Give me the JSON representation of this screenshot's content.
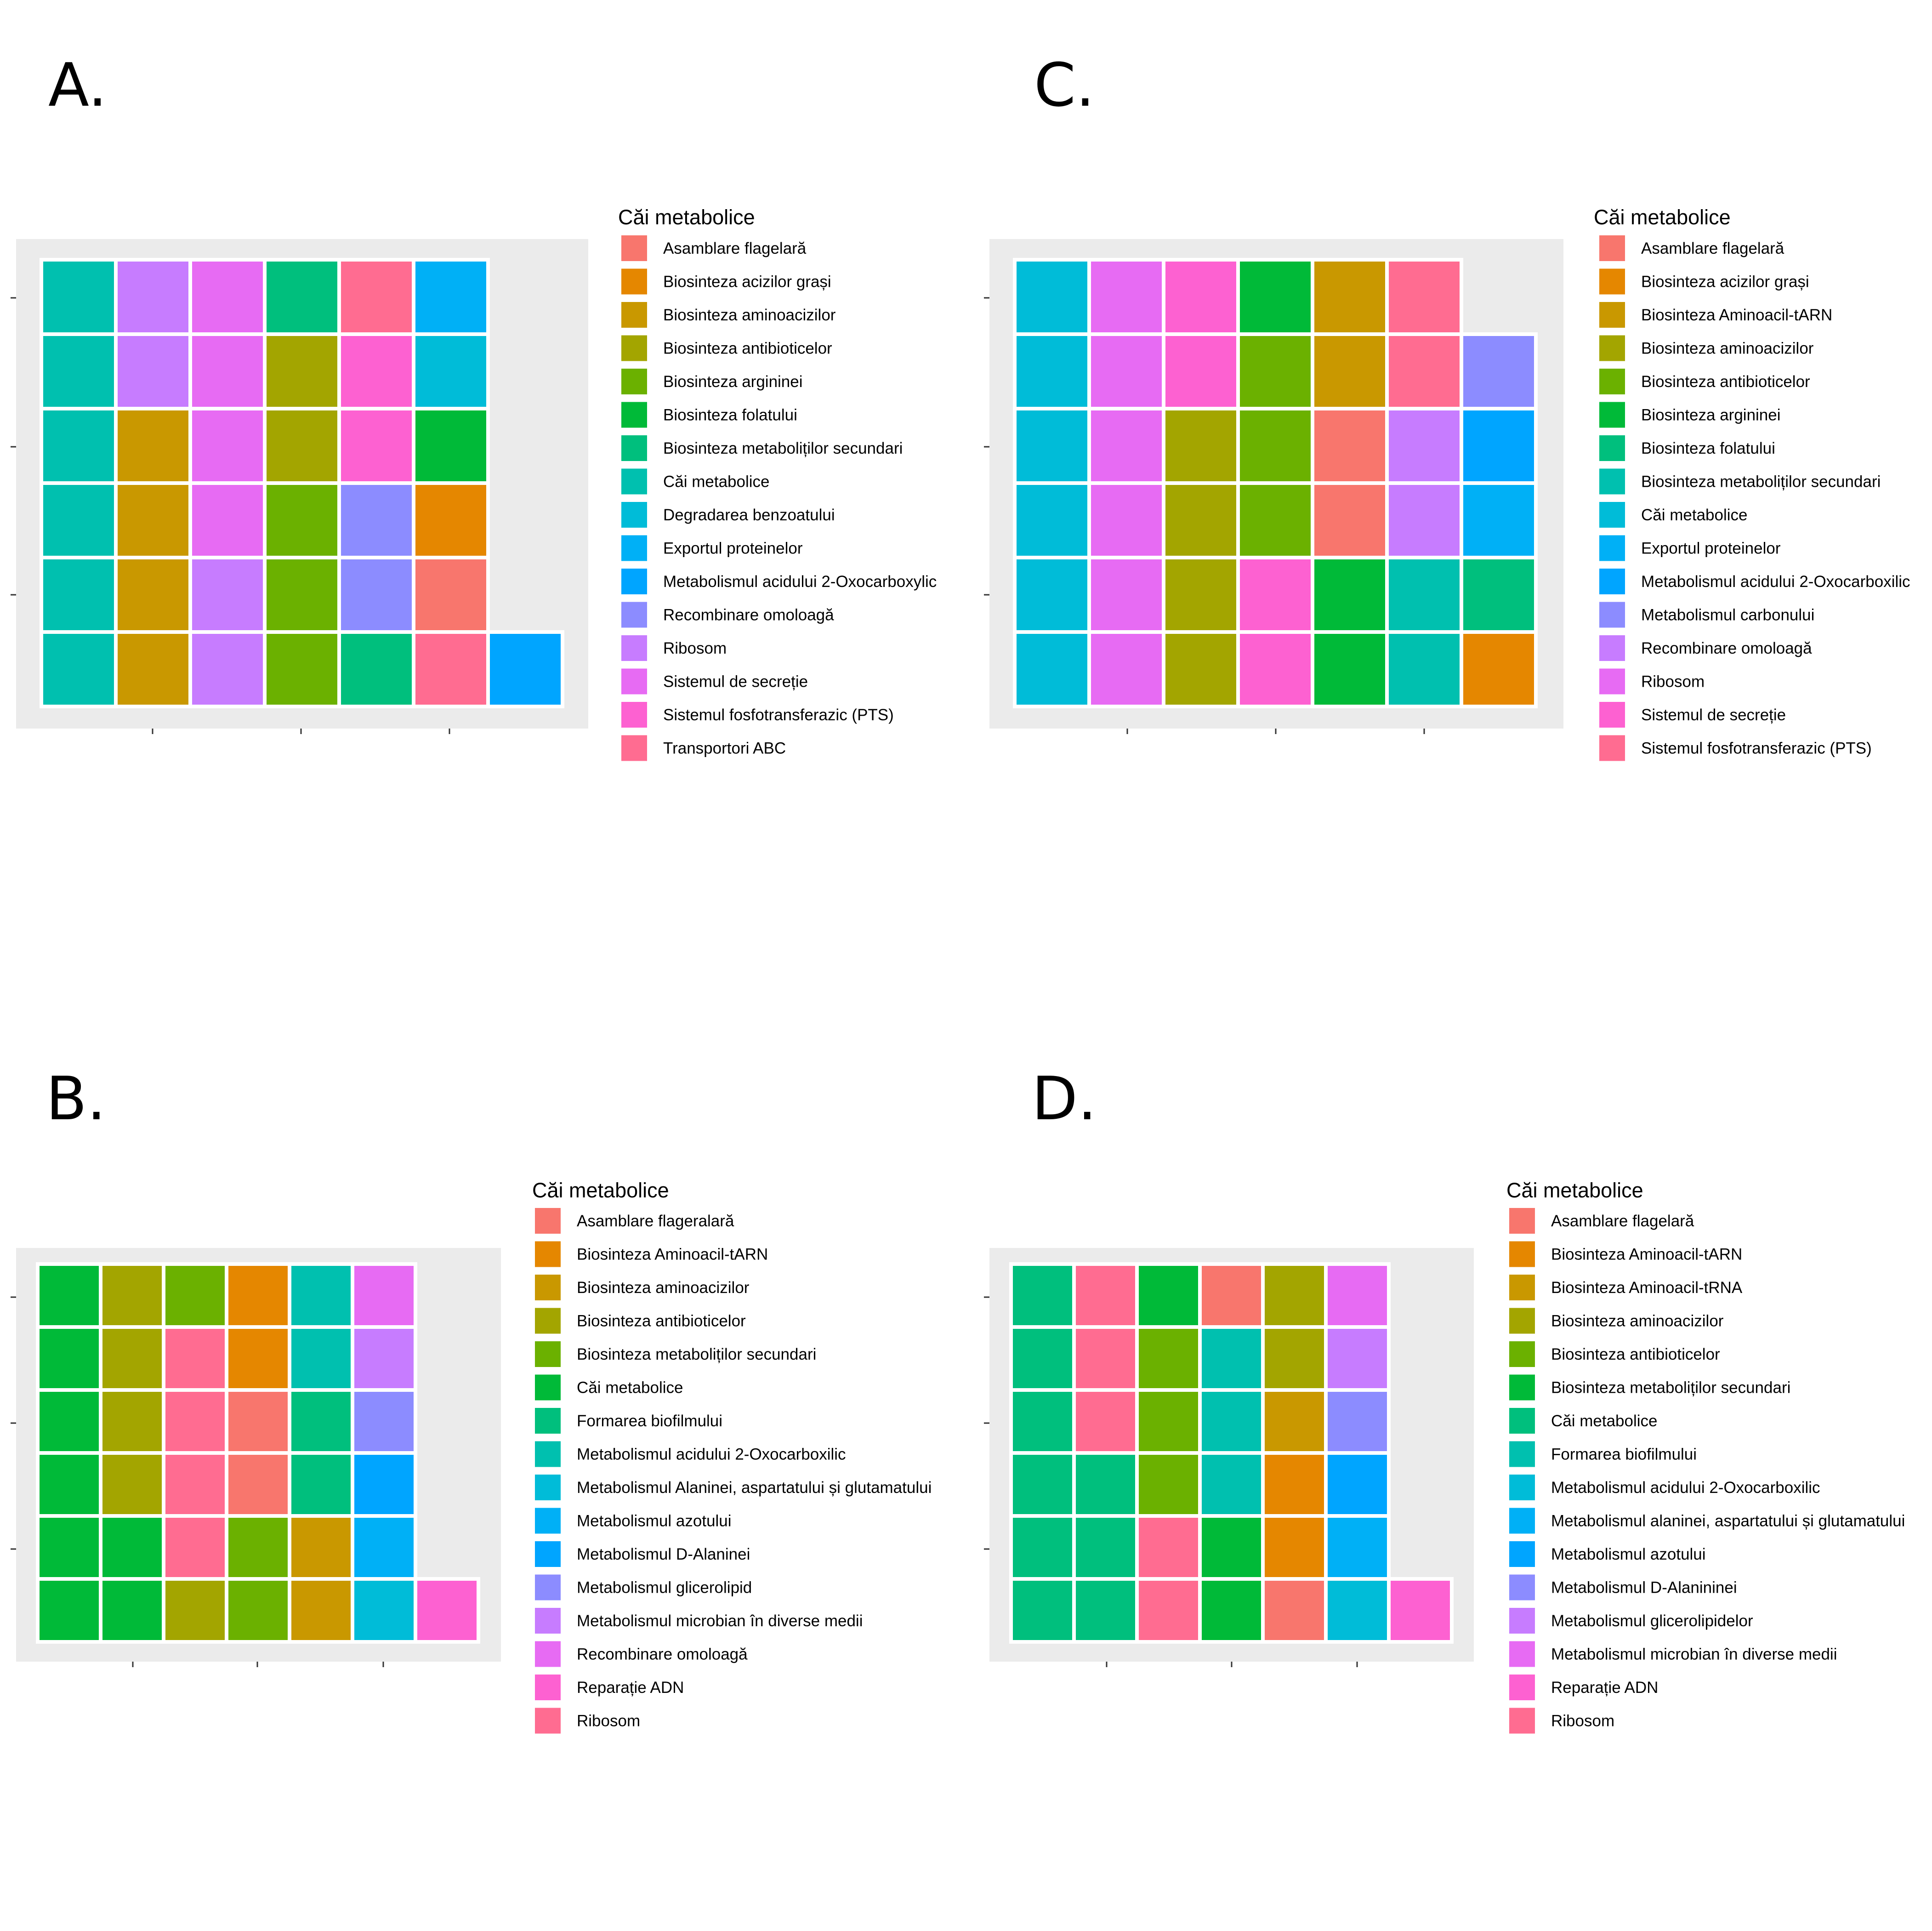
{
  "palette": {
    "Asamblare flagelară": "#F8766D",
    "Asamblare flageralară": "#F8766D",
    "Biosinteza acizilor grași": "#E58700",
    "Biosinteza Aminoacil-tARN": "#E58700",
    "Biosinteza Aminoacil-tRNA": "#C99800",
    "Biosinteza aminoacizilor": "#C99800",
    "Biosinteza antibioticelor": "#A3A500",
    "Biosinteza argininei": "#6BB100",
    "Biosinteza folatului": "#00BA38",
    "Biosinteza metaboliților secundari": "#00BF7D",
    "Căi metabolice": "#00C0AF",
    "Degradarea benzoatului": "#00BCD8",
    "Exportul proteinelor": "#00B0F6",
    "Metabolismul acidului 2-Oxocarboxylic": "#00A5FF",
    "Recombinare omoloagă": "#8C8CFF",
    "Ribosom": "#C77CFF",
    "Sistemul de secreție": "#E76BF3",
    "Sistemul fosfotransferazic (PTS)": "#FD61D1",
    "Transportori ABC": "#FF6C91"
  },
  "chart_data": [
    {
      "panel": "A.",
      "type": "waffle",
      "legend_title": "Căi metabolice",
      "legend_position": "right",
      "grid": "off",
      "legend": [
        {
          "label": "Asamblare flagelară",
          "color": "#F8766D"
        },
        {
          "label": "Biosinteza acizilor grași",
          "color": "#E58700"
        },
        {
          "label": "Biosinteza aminoacizilor",
          "color": "#C99800"
        },
        {
          "label": "Biosinteza antibioticelor",
          "color": "#A3A500"
        },
        {
          "label": "Biosinteza argininei",
          "color": "#6BB100"
        },
        {
          "label": "Biosinteza folatului",
          "color": "#00BA38"
        },
        {
          "label": "Biosinteza metaboliților secundari",
          "color": "#00BF7D"
        },
        {
          "label": "Căi metabolice",
          "color": "#00C0AF"
        },
        {
          "label": "Degradarea benzoatului",
          "color": "#00BCD8"
        },
        {
          "label": "Exportul proteinelor",
          "color": "#00B0F6"
        },
        {
          "label": "Metabolismul acidului 2-Oxocarboxylic",
          "color": "#00A5FF"
        },
        {
          "label": "Recombinare omoloagă",
          "color": "#8C8CFF"
        },
        {
          "label": "Ribosom",
          "color": "#C77CFF"
        },
        {
          "label": "Sistemul de secreție",
          "color": "#E76BF3"
        },
        {
          "label": "Sistemul fosfotransferazic (PTS)",
          "color": "#FD61D1"
        },
        {
          "label": "Transportori ABC",
          "color": "#FF6C91"
        }
      ],
      "columns": [
        [
          "Căi metabolice",
          "Căi metabolice",
          "Căi metabolice",
          "Căi metabolice",
          "Căi metabolice",
          "Căi metabolice"
        ],
        [
          "Biosinteza aminoacizilor",
          "Biosinteza aminoacizilor",
          "Biosinteza aminoacizilor",
          "Biosinteza aminoacizilor",
          "Ribosom",
          "Ribosom"
        ],
        [
          "Ribosom",
          "Ribosom",
          "Sistemul de secreție",
          "Sistemul de secreție",
          "Sistemul de secreție",
          "Sistemul de secreție"
        ],
        [
          "Biosinteza argininei",
          "Biosinteza argininei",
          "Biosinteza argininei",
          "Biosinteza antibioticelor",
          "Biosinteza antibioticelor",
          "Biosinteza metaboliților secundari"
        ],
        [
          "Biosinteza metaboliților secundari",
          "Recombinare omoloagă",
          "Recombinare omoloagă",
          "Sistemul fosfotransferazic (PTS)",
          "Sistemul fosfotransferazic (PTS)",
          "Transportori ABC"
        ],
        [
          "Transportori ABC",
          "Asamblare flagelară",
          "Biosinteza acizilor grași",
          "Biosinteza folatului",
          "Degradarea benzoatului",
          "Exportul proteinelor"
        ],
        [
          "Metabolismul acidului 2-Oxocarboxylic"
        ]
      ]
    },
    {
      "panel": "C.",
      "type": "waffle",
      "legend_title": "Căi metabolice",
      "legend_position": "right",
      "grid": "off",
      "legend": [
        {
          "label": "Asamblare flagelară",
          "color": "#F8766D"
        },
        {
          "label": "Biosinteza acizilor grași",
          "color": "#E58700"
        },
        {
          "label": "Biosinteza Aminoacil-tARN",
          "color": "#C99800"
        },
        {
          "label": "Biosinteza aminoacizilor",
          "color": "#A3A500"
        },
        {
          "label": "Biosinteza antibioticelor",
          "color": "#6BB100"
        },
        {
          "label": "Biosinteza argininei",
          "color": "#00BA38"
        },
        {
          "label": "Biosinteza folatului",
          "color": "#00BF7D"
        },
        {
          "label": "Biosinteza metaboliților secundari",
          "color": "#00C0AF"
        },
        {
          "label": "Căi metabolice",
          "color": "#00BCD8"
        },
        {
          "label": "Exportul proteinelor",
          "color": "#00B0F6"
        },
        {
          "label": "Metabolismul acidului 2-Oxocarboxilic",
          "color": "#00A5FF"
        },
        {
          "label": "Metabolismul carbonului",
          "color": "#8C8CFF"
        },
        {
          "label": "Recombinare omoloagă",
          "color": "#C77CFF"
        },
        {
          "label": "Ribosom",
          "color": "#E76BF3"
        },
        {
          "label": "Sistemul de secreție",
          "color": "#FD61D1"
        },
        {
          "label": "Sistemul fosfotransferazic (PTS)",
          "color": "#FF6C91"
        }
      ],
      "columns": [
        [
          "Căi metabolice",
          "Căi metabolice",
          "Căi metabolice",
          "Căi metabolice",
          "Căi metabolice",
          "Căi metabolice"
        ],
        [
          "Ribosom",
          "Ribosom",
          "Ribosom",
          "Ribosom",
          "Ribosom",
          "Ribosom"
        ],
        [
          "Biosinteza aminoacizilor",
          "Biosinteza aminoacizilor",
          "Biosinteza aminoacizilor",
          "Biosinteza aminoacizilor",
          "Sistemul de secreție",
          "Sistemul de secreție"
        ],
        [
          "Sistemul de secreție",
          "Sistemul de secreție",
          "Biosinteza antibioticelor",
          "Biosinteza antibioticelor",
          "Biosinteza antibioticelor",
          "Biosinteza argininei"
        ],
        [
          "Biosinteza argininei",
          "Biosinteza argininei",
          "Asamblare flagelară",
          "Asamblare flagelară",
          "Biosinteza Aminoacil-tARN",
          "Biosinteza Aminoacil-tARN"
        ],
        [
          "Biosinteza metaboliților secundari",
          "Biosinteza metaboliților secundari",
          "Recombinare omoloagă",
          "Recombinare omoloagă",
          "Sistemul fosfotransferazic (PTS)",
          "Sistemul fosfotransferazic (PTS)"
        ],
        [
          "Biosinteza acizilor grași",
          "Biosinteza folatului",
          "Exportul proteinelor",
          "Metabolismul acidului 2-Oxocarboxilic",
          "Metabolismul carbonului"
        ]
      ]
    },
    {
      "panel": "B.",
      "type": "waffle",
      "legend_title": "Căi metabolice",
      "legend_position": "right",
      "grid": "off",
      "legend": [
        {
          "label": "Asamblare flageralară",
          "color": "#F8766D"
        },
        {
          "label": "Biosinteza Aminoacil-tARN",
          "color": "#E58700"
        },
        {
          "label": "Biosinteza aminoacizilor",
          "color": "#C99800"
        },
        {
          "label": "Biosinteza antibioticelor",
          "color": "#A3A500"
        },
        {
          "label": "Biosinteza metaboliților secundari",
          "color": "#6BB100"
        },
        {
          "label": "Căi metabolice",
          "color": "#00BA38"
        },
        {
          "label": "Formarea biofilmului",
          "color": "#00BF7D"
        },
        {
          "label": "Metabolismul acidului 2-Oxocarboxilic",
          "color": "#00C0AF"
        },
        {
          "label": "Metabolismul Alaninei, aspartatului și glutamatului",
          "color": "#00BCD8"
        },
        {
          "label": "Metabolismul azotului",
          "color": "#00B0F6"
        },
        {
          "label": "Metabolismul D-Alaninei",
          "color": "#00A5FF"
        },
        {
          "label": "Metabolismul glicerolipid",
          "color": "#8C8CFF"
        },
        {
          "label": "Metabolismul microbian în diverse medii",
          "color": "#C77CFF"
        },
        {
          "label": "Recombinare omoloagă",
          "color": "#E76BF3"
        },
        {
          "label": "Reparație ADN",
          "color": "#FD61D1"
        },
        {
          "label": "Ribosom",
          "color": "#FF6C91"
        }
      ],
      "columns": [
        [
          "Căi metabolice",
          "Căi metabolice",
          "Căi metabolice",
          "Căi metabolice",
          "Căi metabolice",
          "Căi metabolice"
        ],
        [
          "Căi metabolice",
          "Căi metabolice",
          "Biosinteza antibioticelor",
          "Biosinteza antibioticelor",
          "Biosinteza antibioticelor",
          "Biosinteza antibioticelor"
        ],
        [
          "Biosinteza antibioticelor",
          "Ribosom",
          "Ribosom",
          "Ribosom",
          "Ribosom",
          "Biosinteza metaboliților secundari"
        ],
        [
          "Biosinteza metaboliților secundari",
          "Biosinteza metaboliților secundari",
          "Asamblare flageralară",
          "Asamblare flageralară",
          "Biosinteza Aminoacil-tARN",
          "Biosinteza Aminoacil-tARN"
        ],
        [
          "Biosinteza aminoacizilor",
          "Biosinteza aminoacizilor",
          "Formarea biofilmului",
          "Formarea biofilmului",
          "Metabolismul acidului 2-Oxocarboxilic",
          "Metabolismul acidului 2-Oxocarboxilic"
        ],
        [
          "Metabolismul Alaninei, aspartatului și glutamatului",
          "Metabolismul azotului",
          "Metabolismul D-Alaninei",
          "Metabolismul glicerolipid",
          "Metabolismul microbian în diverse medii",
          "Recombinare omoloagă"
        ],
        [
          "Reparație ADN"
        ]
      ]
    },
    {
      "panel": "D.",
      "type": "waffle",
      "legend_title": "Căi metabolice",
      "legend_position": "right",
      "grid": "off",
      "legend": [
        {
          "label": "Asamblare flagelară",
          "color": "#F8766D"
        },
        {
          "label": "Biosinteza Aminoacil-tARN",
          "color": "#E58700"
        },
        {
          "label": "Biosinteza Aminoacil-tRNA",
          "color": "#C99800"
        },
        {
          "label": "Biosinteza aminoacizilor",
          "color": "#A3A500"
        },
        {
          "label": "Biosinteza antibioticelor",
          "color": "#6BB100"
        },
        {
          "label": "Biosinteza metaboliților secundari",
          "color": "#00BA38"
        },
        {
          "label": "Căi metabolice",
          "color": "#00BF7D"
        },
        {
          "label": "Formarea biofilmului",
          "color": "#00C0AF"
        },
        {
          "label": "Metabolismul acidului 2-Oxocarboxilic",
          "color": "#00BCD8"
        },
        {
          "label": "Metabolismul alaninei, aspartatului și glutamatului",
          "color": "#00B0F6"
        },
        {
          "label": "Metabolismul azotului",
          "color": "#00A5FF"
        },
        {
          "label": "Metabolismul D-Alanininei",
          "color": "#8C8CFF"
        },
        {
          "label": "Metabolismul glicerolipidelor",
          "color": "#C77CFF"
        },
        {
          "label": "Metabolismul microbian în diverse medii",
          "color": "#E76BF3"
        },
        {
          "label": "Reparație ADN",
          "color": "#FD61D1"
        },
        {
          "label": "Ribosom",
          "color": "#FF6C91"
        }
      ],
      "columns": [
        [
          "Căi metabolice",
          "Căi metabolice",
          "Căi metabolice",
          "Căi metabolice",
          "Căi metabolice",
          "Căi metabolice"
        ],
        [
          "Căi metabolice",
          "Căi metabolice",
          "Căi metabolice",
          "Ribosom",
          "Ribosom",
          "Ribosom"
        ],
        [
          "Ribosom",
          "Ribosom",
          "Biosinteza antibioticelor",
          "Biosinteza antibioticelor",
          "Biosinteza antibioticelor",
          "Biosinteza metaboliților secundari"
        ],
        [
          "Biosinteza metaboliților secundari",
          "Biosinteza metaboliților secundari",
          "Formarea biofilmului",
          "Formarea biofilmului",
          "Formarea biofilmului",
          "Asamblare flagelară"
        ],
        [
          "Asamblare flagelară",
          "Biosinteza Aminoacil-tARN",
          "Biosinteza Aminoacil-tARN",
          "Biosinteza Aminoacil-tRNA",
          "Biosinteza aminoacizilor",
          "Biosinteza aminoacizilor"
        ],
        [
          "Metabolismul acidului 2-Oxocarboxilic",
          "Metabolismul alaninei, aspartatului și glutamatului",
          "Metabolismul azotului",
          "Metabolismul D-Alanininei",
          "Metabolismul glicerolipidelor",
          "Metabolismul microbian în diverse medii"
        ],
        [
          "Reparație ADN"
        ]
      ]
    }
  ]
}
